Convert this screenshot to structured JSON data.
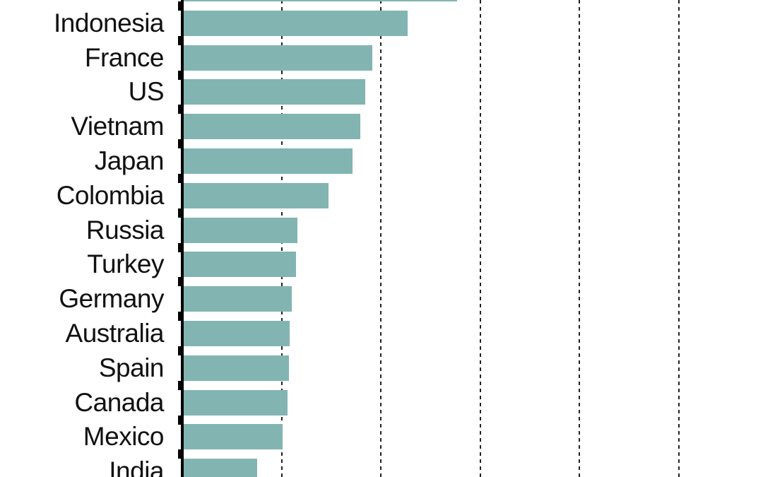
{
  "chart_data": {
    "type": "bar",
    "orientation": "horizontal",
    "title": "",
    "note": "Chart is cropped on all sides: no title, no numeric axis labels visible; the top bar's country label and part of the bottom 'India' row are cut off by the image edges.",
    "value_unit": "gridline intervals (axis tick labels not visible in the cropped image)",
    "xlim_visible_units": [
      0,
      5.85
    ],
    "grid": {
      "visible": true,
      "style": "dashed vertical lines",
      "count": 5,
      "first_at_unit": 1,
      "interval_units": 1
    },
    "legend": "none",
    "rows": [
      {
        "label": "",
        "label_visible": false,
        "value": 2.77
      },
      {
        "label": "Indonesia",
        "label_visible": true,
        "value": 2.27
      },
      {
        "label": "France",
        "label_visible": true,
        "value": 1.91
      },
      {
        "label": "US",
        "label_visible": true,
        "value": 1.84
      },
      {
        "label": "Vietnam",
        "label_visible": true,
        "value": 1.79
      },
      {
        "label": "Japan",
        "label_visible": true,
        "value": 1.71
      },
      {
        "label": "Colombia",
        "label_visible": true,
        "value": 1.47
      },
      {
        "label": "Russia",
        "label_visible": true,
        "value": 1.16
      },
      {
        "label": "Turkey",
        "label_visible": true,
        "value": 1.14
      },
      {
        "label": "Germany",
        "label_visible": true,
        "value": 1.1
      },
      {
        "label": "Australia",
        "label_visible": true,
        "value": 1.08
      },
      {
        "label": "Spain",
        "label_visible": true,
        "value": 1.07
      },
      {
        "label": "Canada",
        "label_visible": true,
        "value": 1.06
      },
      {
        "label": "Mexico",
        "label_visible": true,
        "value": 1.01
      },
      {
        "label": "India",
        "label_visible": true,
        "value": 0.75
      }
    ],
    "colors": {
      "bar": "#82b5b1",
      "axis": "#000000",
      "gridline": "#222222",
      "label_text": "#111111",
      "background": "#ffffff"
    }
  }
}
